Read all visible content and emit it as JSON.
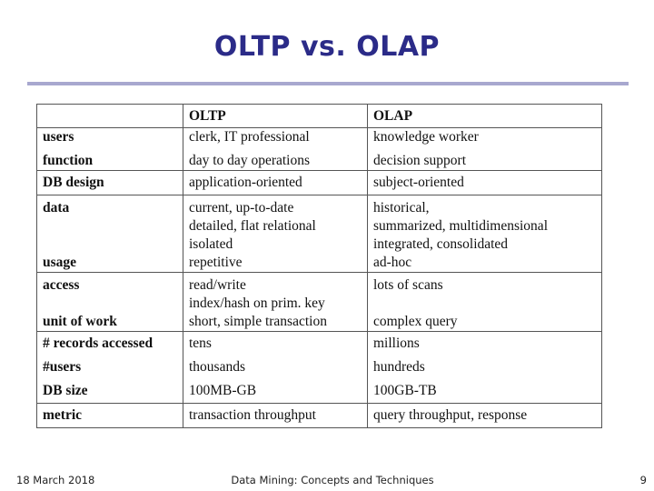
{
  "slide": {
    "title": "OLTP vs. OLAP",
    "rule_color": "#a8a8cf",
    "title_color": "#2b2b88"
  },
  "table": {
    "headers": [
      "",
      "OLTP",
      "OLAP"
    ],
    "rows": [
      {
        "label": "users",
        "oltp": "clerk, IT professional",
        "olap": "knowledge worker"
      },
      {
        "label": "function",
        "oltp": "day to day operations",
        "olap": "decision support"
      },
      {
        "label": "DB design",
        "oltp": "application-oriented",
        "olap": "subject-oriented"
      },
      {
        "label": "data",
        "oltp": [
          "current, up-to-date",
          "detailed, flat relational",
          "isolated"
        ],
        "olap": [
          "historical,",
          "summarized, multidimensional",
          "integrated, consolidated"
        ]
      },
      {
        "label": "usage",
        "oltp": "repetitive",
        "olap": "ad-hoc"
      },
      {
        "label": "access",
        "oltp": [
          "read/write",
          "index/hash on prim. key"
        ],
        "olap": "lots of scans"
      },
      {
        "label": "unit of work",
        "oltp": "short, simple transaction",
        "olap": "complex query"
      },
      {
        "label": "# records accessed",
        "oltp": "tens",
        "olap": "millions"
      },
      {
        "label": "#users",
        "oltp": "thousands",
        "olap": "hundreds"
      },
      {
        "label": "DB size",
        "oltp": "100MB-GB",
        "olap": "100GB-TB"
      },
      {
        "label": "metric",
        "oltp": "transaction throughput",
        "olap": "query throughput, response"
      }
    ]
  },
  "footer": {
    "date": "18 March 2018",
    "center": "Data Mining: Concepts and Techniques",
    "page": "9"
  }
}
